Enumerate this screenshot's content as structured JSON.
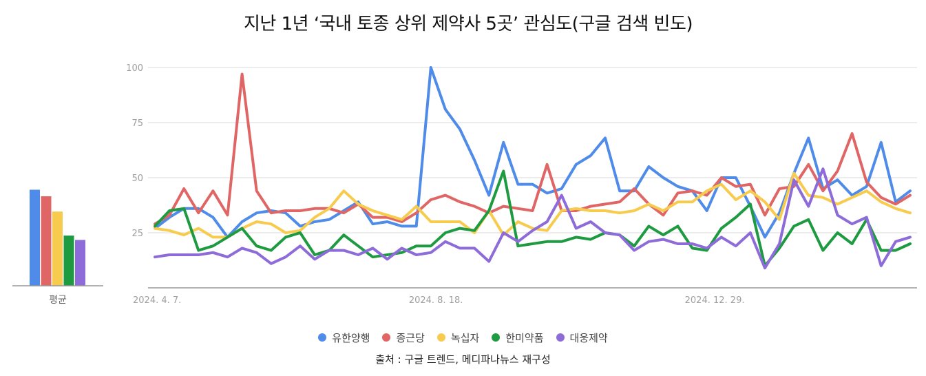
{
  "title": "지난 1년 ‘국내 토종 상위 제약사 5곳’ 관심도(구글 검색 빈도)",
  "source": "출처 : 구글 트렌드, 메디파나뉴스 재구성",
  "average_label": "평균",
  "colors": {
    "유한양행": "#4f8be8",
    "종근당": "#e06666",
    "녹십자": "#f7cb4d",
    "한미약품": "#1e9a40",
    "대웅제약": "#8d6bd8",
    "grid": "#e6e6e6",
    "axis": "#9e9e9e"
  },
  "legend": [
    {
      "name": "유한양행",
      "color": "#4f8be8"
    },
    {
      "name": "종근당",
      "color": "#e06666"
    },
    {
      "name": "녹십자",
      "color": "#f7cb4d"
    },
    {
      "name": "한미약품",
      "color": "#1e9a40"
    },
    {
      "name": "대웅제약",
      "color": "#8d6bd8"
    }
  ],
  "chart_data": [
    {
      "type": "line",
      "ylim": [
        0,
        100
      ],
      "yticks": [
        25,
        50,
        75,
        100
      ],
      "grid": true,
      "legend_position": "bottom",
      "xtick_labels": [
        {
          "index": 0,
          "label": "2024. 4. 7."
        },
        {
          "index": 19,
          "label": "2024. 8. 18."
        },
        {
          "index": 38,
          "label": "2024. 12. 29."
        }
      ],
      "series": [
        {
          "name": "유한양행",
          "values": [
            27,
            32,
            36,
            36,
            32,
            23,
            30,
            34,
            35,
            34,
            28,
            30,
            31,
            35,
            39,
            29,
            30,
            28,
            28,
            100,
            81,
            72,
            58,
            42,
            66,
            47,
            47,
            43,
            45,
            56,
            60,
            68,
            44,
            44,
            55,
            50,
            46,
            44,
            35,
            50,
            50,
            37,
            23,
            34,
            52,
            68,
            45,
            49,
            42,
            46,
            66,
            39,
            44
          ]
        },
        {
          "name": "종근당",
          "values": [
            29,
            33,
            45,
            34,
            44,
            33,
            97,
            44,
            34,
            35,
            35,
            36,
            36,
            34,
            38,
            32,
            32,
            30,
            34,
            40,
            42,
            39,
            37,
            34,
            37,
            36,
            35,
            56,
            35,
            35,
            37,
            38,
            39,
            45,
            38,
            33,
            43,
            44,
            42,
            50,
            46,
            47,
            33,
            45,
            46,
            56,
            44,
            53,
            70,
            48,
            41,
            38,
            42
          ]
        },
        {
          "name": "녹십자",
          "values": [
            27,
            26,
            24,
            27,
            23,
            23,
            27,
            30,
            29,
            25,
            26,
            32,
            36,
            44,
            38,
            35,
            33,
            31,
            37,
            30,
            30,
            30,
            25,
            35,
            24,
            30,
            27,
            26,
            35,
            36,
            35,
            35,
            34,
            35,
            38,
            35,
            39,
            39,
            44,
            47,
            40,
            44,
            39,
            31,
            52,
            42,
            41,
            38,
            41,
            44,
            39,
            36,
            34
          ]
        },
        {
          "name": "한미약품",
          "values": [
            28,
            35,
            36,
            17,
            19,
            23,
            27,
            19,
            17,
            23,
            25,
            15,
            17,
            24,
            19,
            14,
            15,
            16,
            19,
            19,
            25,
            27,
            26,
            35,
            53,
            19,
            20,
            21,
            21,
            23,
            22,
            25,
            24,
            19,
            28,
            24,
            28,
            18,
            17,
            27,
            32,
            38,
            10,
            18,
            28,
            31,
            17,
            25,
            20,
            31,
            17,
            17,
            20
          ]
        },
        {
          "name": "대웅제약",
          "values": [
            14,
            15,
            15,
            15,
            16,
            14,
            18,
            16,
            11,
            14,
            19,
            13,
            17,
            17,
            15,
            18,
            13,
            18,
            15,
            16,
            21,
            18,
            18,
            12,
            25,
            21,
            26,
            30,
            42,
            27,
            30,
            25,
            24,
            17,
            21,
            22,
            20,
            20,
            18,
            23,
            19,
            25,
            9,
            20,
            49,
            37,
            54,
            33,
            29,
            32,
            10,
            21,
            23
          ]
        }
      ]
    },
    {
      "type": "bar",
      "title": "",
      "categories": [
        "유한양행",
        "종근당",
        "녹십자",
        "한미약품",
        "대웅제약"
      ],
      "xlabel": "평균",
      "values": [
        44,
        41,
        34,
        23,
        21
      ],
      "ylim": [
        0,
        100
      ]
    }
  ]
}
